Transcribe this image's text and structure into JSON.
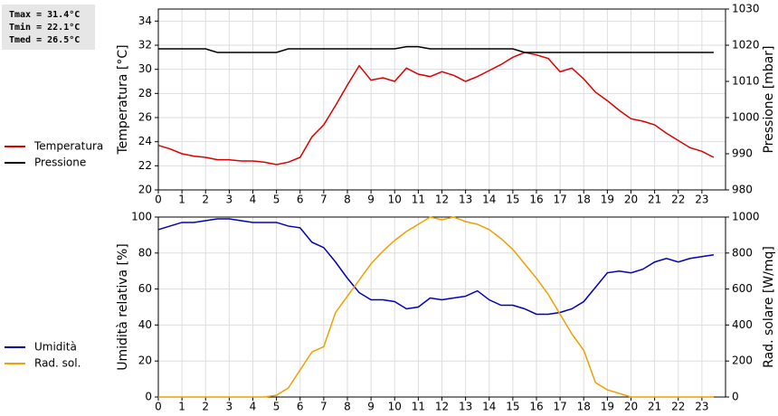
{
  "chart_data": [
    {
      "type": "line",
      "annotations": [
        "Tmax = 31.4°C",
        "Tmin = 22.1°C",
        "Tmed = 26.5°C"
      ],
      "ylabel": "Temperatura [°C]",
      "y2label": "Pressione [mbar]",
      "x": [
        0,
        0.5,
        1,
        1.5,
        2,
        2.5,
        3,
        3.5,
        4,
        4.5,
        5,
        5.5,
        6,
        6.5,
        7,
        7.5,
        8,
        8.5,
        9,
        9.5,
        10,
        10.5,
        11,
        11.5,
        12,
        12.5,
        13,
        13.5,
        14,
        14.5,
        15,
        15.5,
        16,
        16.5,
        17,
        17.5,
        18,
        18.5,
        19,
        19.5,
        20,
        20.5,
        21,
        21.5,
        22,
        22.5,
        23,
        23.5
      ],
      "xlim": [
        0,
        24
      ],
      "xticks": [
        0,
        1,
        2,
        3,
        4,
        5,
        6,
        7,
        8,
        9,
        10,
        11,
        12,
        13,
        14,
        15,
        16,
        17,
        18,
        19,
        20,
        21,
        22,
        23
      ],
      "ylim": [
        20,
        35
      ],
      "yticks": [
        20,
        22,
        24,
        26,
        28,
        30,
        32,
        34
      ],
      "y2lim": [
        980,
        1030
      ],
      "y2ticks": [
        980,
        990,
        1000,
        1010,
        1020,
        1030
      ],
      "grid": true,
      "series": [
        {
          "name": "Temperatura",
          "color": "#dd0000",
          "values": [
            23.7,
            23.4,
            23.0,
            22.8,
            22.7,
            22.5,
            22.5,
            22.4,
            22.4,
            22.3,
            22.1,
            22.3,
            22.7,
            24.4,
            25.4,
            27.0,
            28.7,
            30.3,
            29.1,
            29.3,
            29.0,
            30.1,
            29.6,
            29.4,
            29.8,
            29.5,
            29.0,
            29.4,
            29.9,
            30.4,
            31.0,
            31.4,
            31.2,
            30.9,
            29.8,
            30.1,
            29.2,
            28.1,
            27.4,
            26.6,
            25.9,
            25.7,
            25.4,
            24.7,
            24.1,
            23.5,
            23.2,
            22.7
          ]
        },
        {
          "name": "Pressione",
          "color": "#000000",
          "axis": "y2",
          "values": [
            1019,
            1019,
            1019,
            1019,
            1019,
            1018,
            1018,
            1018,
            1018,
            1018,
            1018,
            1019,
            1019,
            1019,
            1019,
            1019,
            1019,
            1019,
            1019,
            1019,
            1019,
            1019.6,
            1019.6,
            1019,
            1019,
            1019,
            1019,
            1019,
            1019,
            1019,
            1019,
            1018,
            1018,
            1018,
            1018,
            1018,
            1018,
            1018,
            1018,
            1018,
            1018,
            1018,
            1018,
            1018,
            1018,
            1018,
            1018,
            1018
          ]
        }
      ]
    },
    {
      "type": "line",
      "ylabel": "Umidità relativa [%]",
      "y2label": "Rad. solare [W/mq]",
      "x": [
        0,
        0.5,
        1,
        1.5,
        2,
        2.5,
        3,
        3.5,
        4,
        4.5,
        5,
        5.5,
        6,
        6.5,
        7,
        7.5,
        8,
        8.5,
        9,
        9.5,
        10,
        10.5,
        11,
        11.5,
        12,
        12.5,
        13,
        13.5,
        14,
        14.5,
        15,
        15.5,
        16,
        16.5,
        17,
        17.5,
        18,
        18.5,
        19,
        19.5,
        20,
        20.5,
        21,
        21.5,
        22,
        22.5,
        23,
        23.5
      ],
      "xlim": [
        0,
        24
      ],
      "xticks": [
        0,
        1,
        2,
        3,
        4,
        5,
        6,
        7,
        8,
        9,
        10,
        11,
        12,
        13,
        14,
        15,
        16,
        17,
        18,
        19,
        20,
        21,
        22,
        23
      ],
      "ylim": [
        0,
        100
      ],
      "yticks": [
        0,
        20,
        40,
        60,
        80,
        100
      ],
      "y2lim": [
        0,
        1000
      ],
      "y2ticks": [
        0,
        200,
        400,
        600,
        800,
        1000
      ],
      "grid": true,
      "series": [
        {
          "name": "Umidità",
          "color": "#0000bb",
          "values": [
            93,
            95,
            97,
            97,
            98,
            99,
            99,
            98,
            97,
            97,
            97,
            95,
            94,
            86,
            83,
            75,
            66,
            58,
            54,
            54,
            53,
            49,
            50,
            55,
            54,
            55,
            56,
            59,
            54,
            51,
            51,
            49,
            46,
            46,
            47,
            49,
            53,
            61,
            69,
            70,
            69,
            71,
            75,
            77,
            75,
            77,
            78,
            79
          ]
        },
        {
          "name": "Rad. sol.",
          "color": "#f0a000",
          "axis": "y2",
          "values": [
            0,
            0,
            0,
            0,
            0,
            0,
            0,
            0,
            0,
            0,
            10,
            50,
            150,
            250,
            280,
            470,
            560,
            650,
            740,
            810,
            870,
            920,
            960,
            1000,
            985,
            1000,
            975,
            960,
            930,
            880,
            820,
            740,
            660,
            570,
            460,
            350,
            260,
            80,
            40,
            20,
            0,
            0,
            0,
            0,
            0,
            0,
            0,
            0
          ]
        }
      ]
    }
  ]
}
